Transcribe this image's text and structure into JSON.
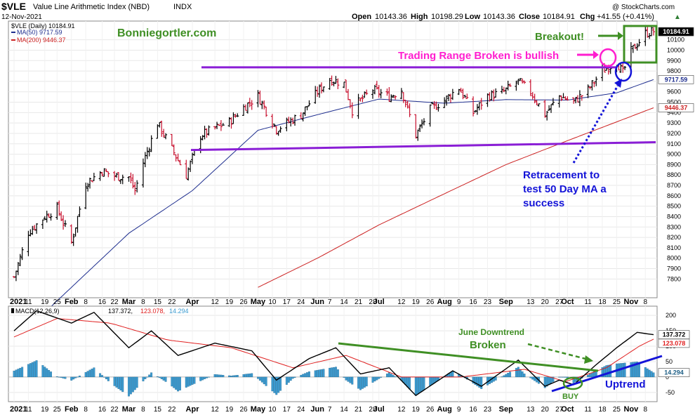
{
  "header": {
    "symbol": "$VLE",
    "name": "Value Line Arithmetic Index (NBD)",
    "exchange": "INDX",
    "date": "12-Nov-2021",
    "watermark": "@ StockCharts.com",
    "open_label": "Open",
    "open": "10143.36",
    "high_label": "High",
    "high": "10198.29",
    "low_label": "Low",
    "low": "10143.36",
    "close_label": "Close",
    "close": "10184.91",
    "chg_label": "Chg",
    "chg": "+41.55 (+0.41%)",
    "chg_arrow": "▲"
  },
  "legend": {
    "price": "$VLE (Daily) 10184.91",
    "ma50": "MA(50) 9717.59",
    "ma200": "MA(200) 9446.37",
    "macd_name": "MACD(12,26,9)",
    "macd_v1": "137.372,",
    "macd_v2": "123.078,",
    "macd_v3": "14.294"
  },
  "watermark_site": "Bonniegortler.com",
  "price_badges": {
    "close": "10184.91",
    "ma50": "9717.59",
    "ma200": "9446.37"
  },
  "macd_badges": {
    "macd": "137.372",
    "signal": "123.078",
    "hist": "14.294"
  },
  "annotations": {
    "breakout": "Breakout!",
    "trading_range": "Trading Range Broken is bullish",
    "retracement_1": "Retracement to",
    "retracement_2": "test 50 Day MA  a",
    "retracement_3": "success",
    "june_1": "June Downtrend",
    "june_2": "Broken",
    "uptrend": "Uptrend",
    "buy": "BUY"
  },
  "colors": {
    "up_bar": "#000000",
    "down_bar": "#c8102e",
    "ma50": "#1f2f8f",
    "ma200": "#cc2222",
    "trend_purple": "#8a1ed6",
    "green": "#3f8f24",
    "magenta": "#ff1ecf",
    "blue": "#1414d8",
    "hist": "#3b9bd1",
    "macd_line": "#000000",
    "signal_line": "#e02020"
  },
  "chart_data": [
    {
      "type": "ohlc",
      "series": [
        {
          "name": "$VLE (Daily)",
          "close_last": 10184.91
        },
        {
          "name": "MA(50)",
          "last": 9717.59
        },
        {
          "name": "MA(200)",
          "last": 9446.37
        }
      ],
      "anchors_close": [
        [
          "2021-01-04",
          7820
        ],
        [
          "2021-01-11",
          8250
        ],
        [
          "2021-01-19",
          8400
        ],
        [
          "2021-01-25",
          8480
        ],
        [
          "2021-02-01",
          8150
        ],
        [
          "2021-02-08",
          8720
        ],
        [
          "2021-02-16",
          8840
        ],
        [
          "2021-02-22",
          8790
        ],
        [
          "2021-03-01",
          8780
        ],
        [
          "2021-03-04",
          8650
        ],
        [
          "2021-03-08",
          8920
        ],
        [
          "2021-03-15",
          9300
        ],
        [
          "2021-03-22",
          9050
        ],
        [
          "2021-03-29",
          8800
        ],
        [
          "2021-04-05",
          9180
        ],
        [
          "2021-04-12",
          9250
        ],
        [
          "2021-04-19",
          9310
        ],
        [
          "2021-04-26",
          9450
        ],
        [
          "2021-05-03",
          9560
        ],
        [
          "2021-05-12",
          9240
        ],
        [
          "2021-05-17",
          9300
        ],
        [
          "2021-05-24",
          9380
        ],
        [
          "2021-06-01",
          9600
        ],
        [
          "2021-06-07",
          9720
        ],
        [
          "2021-06-14",
          9680
        ],
        [
          "2021-06-18",
          9420
        ],
        [
          "2021-06-21",
          9500
        ],
        [
          "2021-06-28",
          9620
        ],
        [
          "2021-07-06",
          9550
        ],
        [
          "2021-07-12",
          9620
        ],
        [
          "2021-07-19",
          9180
        ],
        [
          "2021-07-26",
          9430
        ],
        [
          "2021-08-02",
          9520
        ],
        [
          "2021-08-09",
          9640
        ],
        [
          "2021-08-16",
          9400
        ],
        [
          "2021-08-23",
          9560
        ],
        [
          "2021-08-30",
          9590
        ],
        [
          "2021-09-07",
          9700
        ],
        [
          "2021-09-13",
          9600
        ],
        [
          "2021-09-20",
          9380
        ],
        [
          "2021-09-27",
          9560
        ],
        [
          "2021-10-04",
          9500
        ],
        [
          "2021-10-11",
          9620
        ],
        [
          "2021-10-18",
          9800
        ],
        [
          "2021-10-25",
          9890
        ],
        [
          "2021-10-28",
          9780
        ],
        [
          "2021-11-01",
          9990
        ],
        [
          "2021-11-08",
          10160
        ],
        [
          "2021-11-12",
          10184.91
        ]
      ],
      "ma50_anchors": [
        [
          "2021-01-04",
          7200
        ],
        [
          "2021-03-01",
          8240
        ],
        [
          "2021-04-01",
          8650
        ],
        [
          "2021-05-03",
          9230
        ],
        [
          "2021-06-01",
          9380
        ],
        [
          "2021-07-01",
          9530
        ],
        [
          "2021-08-02",
          9490
        ],
        [
          "2021-09-01",
          9525
        ],
        [
          "2021-10-01",
          9520
        ],
        [
          "2021-10-25",
          9590
        ],
        [
          "2021-11-12",
          9717.59
        ]
      ],
      "ma200_anchors": [
        [
          "2021-05-03",
          7720
        ],
        [
          "2021-06-01",
          8000
        ],
        [
          "2021-07-01",
          8320
        ],
        [
          "2021-08-02",
          8620
        ],
        [
          "2021-09-01",
          8900
        ],
        [
          "2021-10-01",
          9130
        ],
        [
          "2021-11-12",
          9446.37
        ]
      ],
      "ylim": [
        7620,
        10280
      ],
      "y_ticks": [
        7800,
        7900,
        8000,
        8100,
        8200,
        8300,
        8400,
        8500,
        8600,
        8700,
        8800,
        8900,
        9000,
        9100,
        9200,
        9300,
        9400,
        9500,
        9600,
        9700,
        9800,
        9900,
        10000,
        10100
      ],
      "range_high": 9835,
      "range_low": [
        9040,
        9115
      ]
    },
    {
      "type": "macd",
      "title": "MACD(12,26,9)",
      "macd_anchors": [
        [
          "2021-01-04",
          150
        ],
        [
          "2021-01-15",
          215
        ],
        [
          "2021-02-01",
          175
        ],
        [
          "2021-02-12",
          210
        ],
        [
          "2021-03-01",
          95
        ],
        [
          "2021-03-12",
          150
        ],
        [
          "2021-03-25",
          70
        ],
        [
          "2021-04-12",
          110
        ],
        [
          "2021-04-30",
          85
        ],
        [
          "2021-05-12",
          -10
        ],
        [
          "2021-05-28",
          60
        ],
        [
          "2021-06-10",
          95
        ],
        [
          "2021-06-22",
          10
        ],
        [
          "2021-07-06",
          30
        ],
        [
          "2021-07-19",
          -60
        ],
        [
          "2021-08-06",
          20
        ],
        [
          "2021-08-20",
          -30
        ],
        [
          "2021-09-07",
          55
        ],
        [
          "2021-09-20",
          -30
        ],
        [
          "2021-09-27",
          -10
        ],
        [
          "2021-10-04",
          -25
        ],
        [
          "2021-10-15",
          40
        ],
        [
          "2021-10-25",
          95
        ],
        [
          "2021-11-04",
          145
        ],
        [
          "2021-11-12",
          137.372
        ]
      ],
      "signal_anchors": [
        [
          "2021-01-04",
          130
        ],
        [
          "2021-01-25",
          190
        ],
        [
          "2021-02-20",
          175
        ],
        [
          "2021-03-20",
          120
        ],
        [
          "2021-04-20",
          95
        ],
        [
          "2021-05-20",
          30
        ],
        [
          "2021-06-15",
          70
        ],
        [
          "2021-07-12",
          0
        ],
        [
          "2021-08-10",
          0
        ],
        [
          "2021-09-10",
          25
        ],
        [
          "2021-09-30",
          -15
        ],
        [
          "2021-10-20",
          30
        ],
        [
          "2021-11-05",
          100
        ],
        [
          "2021-11-12",
          123.078
        ]
      ],
      "hist_last": 14.294,
      "ylim": [
        -80,
        230
      ],
      "y_ticks": [
        -50,
        0,
        50,
        100,
        150,
        200
      ]
    }
  ],
  "x_axis_labels": [
    {
      "date": "2021-01-04",
      "label": "2021"
    },
    {
      "date": "2021-01-11",
      "label": "11"
    },
    {
      "date": "2021-01-19",
      "label": "19"
    },
    {
      "date": "2021-01-25",
      "label": "25"
    },
    {
      "date": "2021-02-01",
      "label": "Feb"
    },
    {
      "date": "2021-02-08",
      "label": "8"
    },
    {
      "date": "2021-02-16",
      "label": "16"
    },
    {
      "date": "2021-02-22",
      "label": "22"
    },
    {
      "date": "2021-03-01",
      "label": "Mar"
    },
    {
      "date": "2021-03-08",
      "label": "8"
    },
    {
      "date": "2021-03-15",
      "label": "15"
    },
    {
      "date": "2021-03-22",
      "label": "22"
    },
    {
      "date": "2021-04-01",
      "label": "Apr"
    },
    {
      "date": "2021-04-12",
      "label": "12"
    },
    {
      "date": "2021-04-19",
      "label": "19"
    },
    {
      "date": "2021-04-26",
      "label": "26"
    },
    {
      "date": "2021-05-03",
      "label": "May"
    },
    {
      "date": "2021-05-10",
      "label": "10"
    },
    {
      "date": "2021-05-17",
      "label": "17"
    },
    {
      "date": "2021-05-24",
      "label": "24"
    },
    {
      "date": "2021-06-01",
      "label": "Jun"
    },
    {
      "date": "2021-06-07",
      "label": "7"
    },
    {
      "date": "2021-06-14",
      "label": "14"
    },
    {
      "date": "2021-06-21",
      "label": "21"
    },
    {
      "date": "2021-06-28",
      "label": "28"
    },
    {
      "date": "2021-07-01",
      "label": "Jul"
    },
    {
      "date": "2021-07-12",
      "label": "12"
    },
    {
      "date": "2021-07-19",
      "label": "19"
    },
    {
      "date": "2021-07-26",
      "label": "26"
    },
    {
      "date": "2021-08-02",
      "label": "Aug"
    },
    {
      "date": "2021-08-09",
      "label": "9"
    },
    {
      "date": "2021-08-16",
      "label": "16"
    },
    {
      "date": "2021-08-23",
      "label": "23"
    },
    {
      "date": "2021-09-01",
      "label": "Sep"
    },
    {
      "date": "2021-09-13",
      "label": "13"
    },
    {
      "date": "2021-09-20",
      "label": "20"
    },
    {
      "date": "2021-09-27",
      "label": "27"
    },
    {
      "date": "2021-10-01",
      "label": "Oct"
    },
    {
      "date": "2021-10-11",
      "label": "11"
    },
    {
      "date": "2021-10-18",
      "label": "18"
    },
    {
      "date": "2021-10-25",
      "label": "25"
    },
    {
      "date": "2021-11-01",
      "label": "Nov"
    },
    {
      "date": "2021-11-08",
      "label": "8"
    }
  ]
}
